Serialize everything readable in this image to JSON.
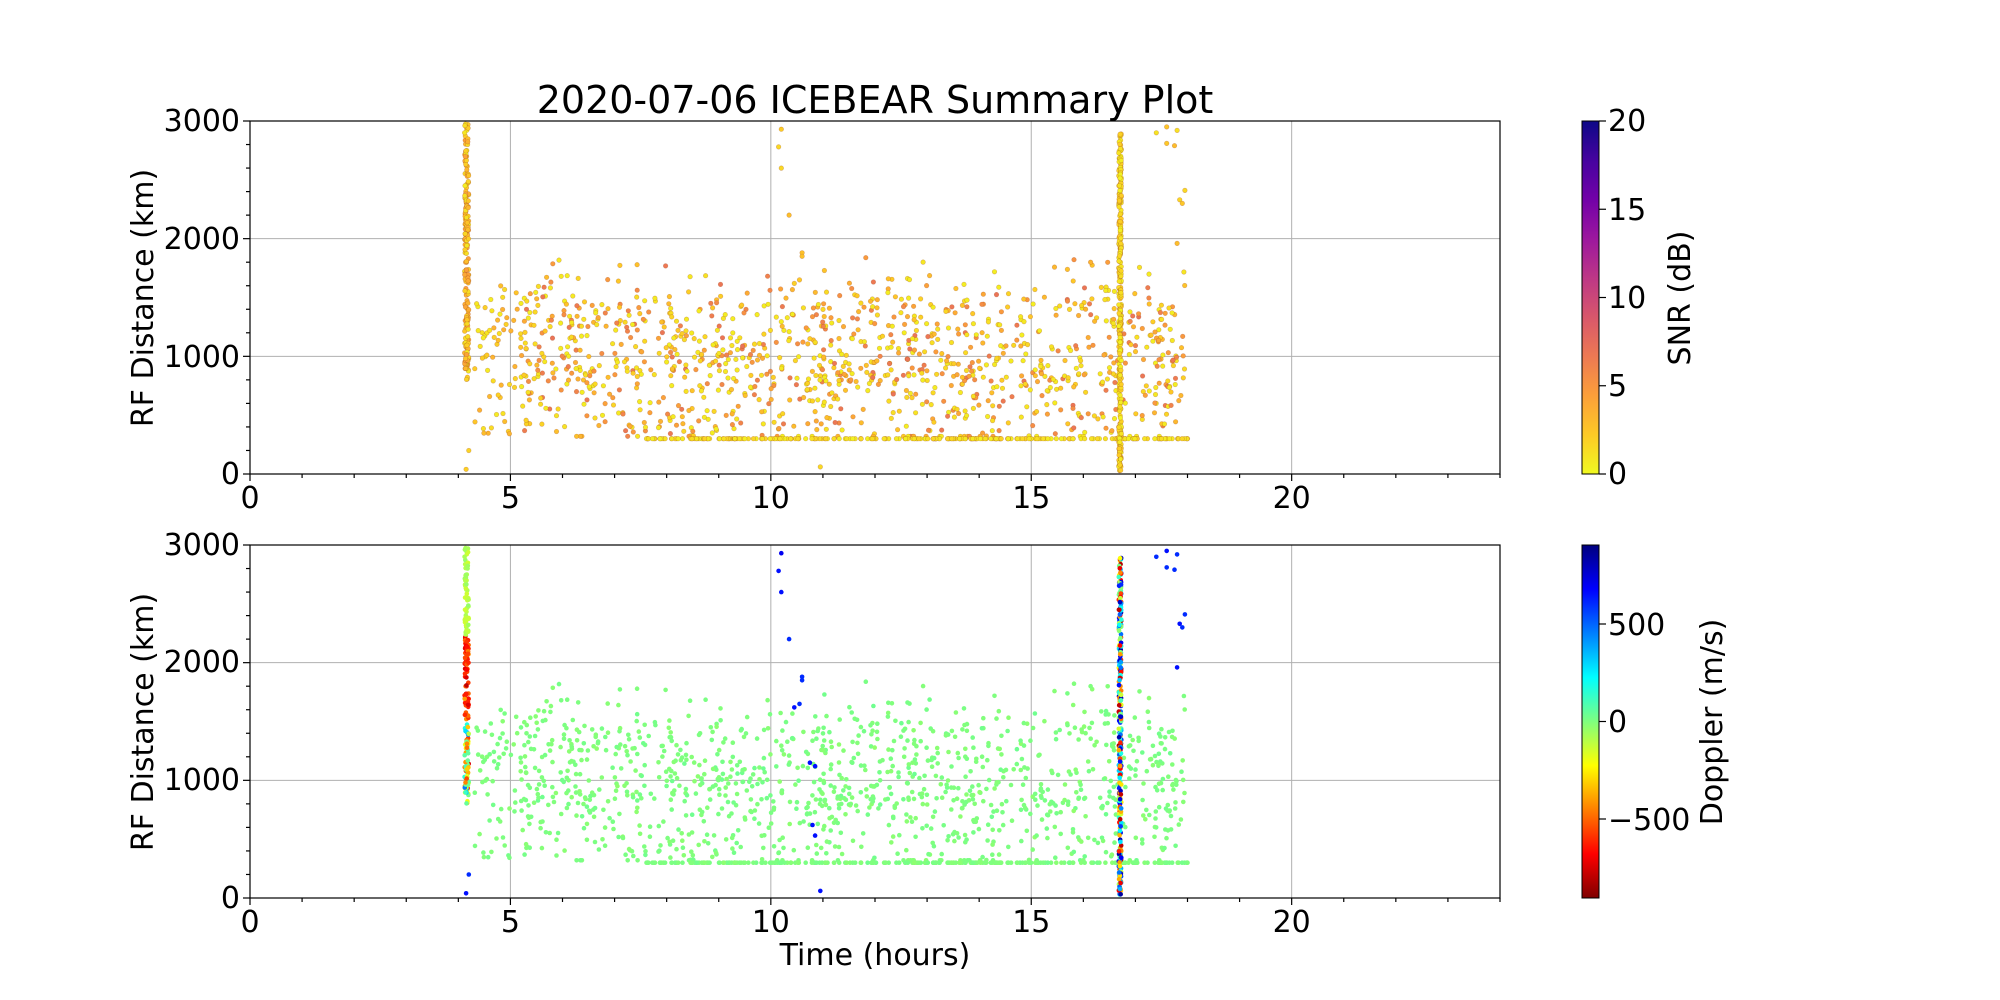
{
  "chart_data": [
    {
      "type": "scatter",
      "title": "2020-07-06 ICEBEAR Summary Plot",
      "xlabel": "",
      "ylabel": "RF Distance (km)",
      "xlim": [
        0,
        24
      ],
      "ylim": [
        0,
        3000
      ],
      "xticks": [
        "0",
        "5",
        "10",
        "15",
        "20"
      ],
      "yticks": [
        "0",
        "1000",
        "2000",
        "3000"
      ],
      "grid": true,
      "color_variable": "snr",
      "colorbar": {
        "label": "SNR (dB)",
        "range": [
          0,
          20
        ],
        "ticks": [
          "0",
          "5",
          "10",
          "15",
          "20"
        ],
        "colormap": "plasma_r",
        "stops": [
          "#f0f921",
          "#fdca26",
          "#fb9f3a",
          "#ed7953",
          "#d8576b",
          "#bd3786",
          "#9c179e",
          "#7201a8",
          "#46039f",
          "#0d0887"
        ]
      },
      "data_summary": {
        "time_range_hours": [
          4.1,
          18.0
        ],
        "dense_vertical_bands_hours": [
          4.15,
          16.7
        ],
        "main_cluster_distance_km": [
          300,
          1800
        ],
        "floor_line_distance_km": 300,
        "typical_snr_db": [
          0.5,
          6
        ]
      }
    },
    {
      "type": "scatter",
      "title": "",
      "xlabel": "Time (hours)",
      "ylabel": "RF Distance (km)",
      "xlim": [
        0,
        24
      ],
      "ylim": [
        0,
        3000
      ],
      "xticks": [
        "0",
        "5",
        "10",
        "15",
        "20"
      ],
      "yticks": [
        "0",
        "1000",
        "2000",
        "3000"
      ],
      "grid": true,
      "color_variable": "doppler",
      "colorbar": {
        "label": "Doppler (m/s)",
        "range": [
          -900,
          900
        ],
        "ticks": [
          "−500",
          "0",
          "500"
        ],
        "tick_values": [
          -500,
          0,
          500
        ],
        "colormap": "jet_r",
        "stops": [
          "#7f0000",
          "#ff0000",
          "#ff7f00",
          "#ffff00",
          "#7fff7f",
          "#00ffff",
          "#007fff",
          "#0000ff",
          "#00007f"
        ]
      },
      "data_summary": {
        "time_range_hours": [
          4.1,
          18.0
        ],
        "dense_vertical_bands_hours": [
          4.15,
          16.7
        ],
        "main_cluster_distance_km": [
          300,
          1800
        ],
        "typical_doppler_ms": [
          -30,
          30
        ],
        "high_doppler_points": [
          {
            "t": 10.2,
            "d": 2930,
            "v": 700
          },
          {
            "t": 10.15,
            "d": 2780,
            "v": 650
          },
          {
            "t": 10.2,
            "d": 2600,
            "v": 650
          },
          {
            "t": 10.35,
            "d": 2200,
            "v": 600
          },
          {
            "t": 10.6,
            "d": 1880,
            "v": 600
          },
          {
            "t": 10.6,
            "d": 1850,
            "v": 600
          },
          {
            "t": 10.55,
            "d": 1650,
            "v": 600
          },
          {
            "t": 10.45,
            "d": 1620,
            "v": 650
          },
          {
            "t": 10.75,
            "d": 1150,
            "v": 650
          },
          {
            "t": 10.85,
            "d": 1120,
            "v": 650
          },
          {
            "t": 10.8,
            "d": 620,
            "v": 650
          },
          {
            "t": 10.85,
            "d": 530,
            "v": 650
          },
          {
            "t": 10.95,
            "d": 60,
            "v": 650
          },
          {
            "t": 4.2,
            "d": 200,
            "v": 600
          },
          {
            "t": 4.15,
            "d": 40,
            "v": 650
          },
          {
            "t": 17.4,
            "d": 2900,
            "v": 600
          },
          {
            "t": 17.6,
            "d": 2950,
            "v": 650
          },
          {
            "t": 17.8,
            "d": 2920,
            "v": 600
          },
          {
            "t": 17.6,
            "d": 2810,
            "v": 600
          },
          {
            "t": 17.75,
            "d": 2790,
            "v": 600
          },
          {
            "t": 17.95,
            "d": 2410,
            "v": 600
          },
          {
            "t": 17.85,
            "d": 2330,
            "v": 650
          },
          {
            "t": 17.9,
            "d": 2300,
            "v": 600
          },
          {
            "t": 17.8,
            "d": 1960,
            "v": 650
          }
        ]
      }
    }
  ]
}
